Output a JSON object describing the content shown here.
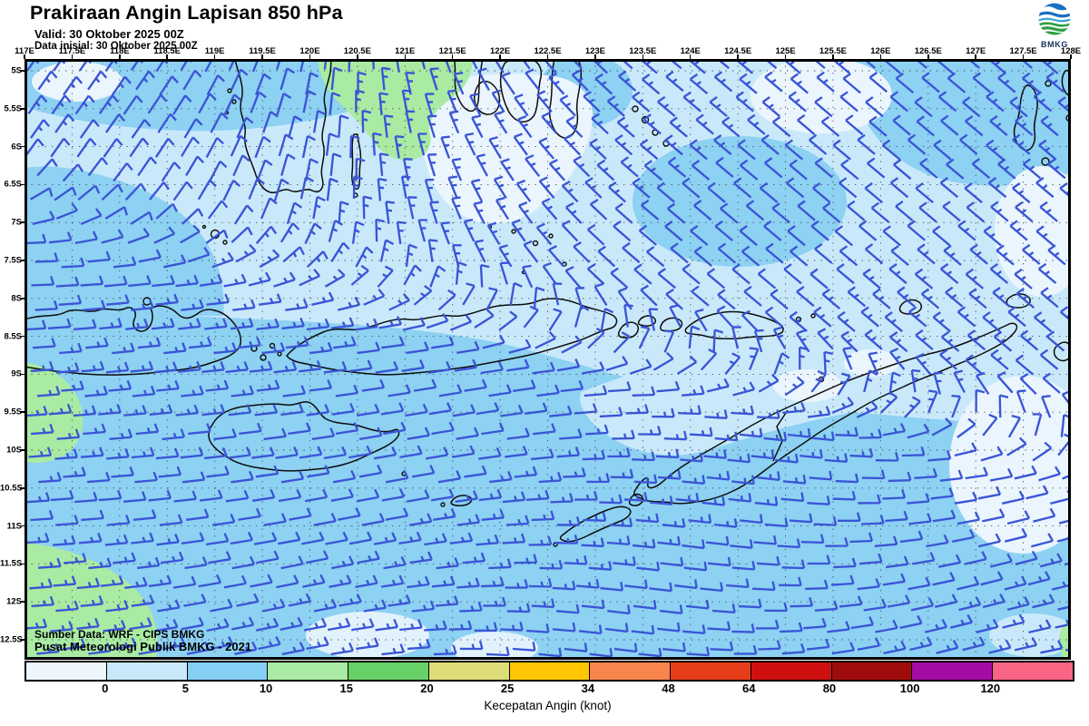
{
  "header": {
    "title": "Prakiraan Angin Lapisan 850 hPa",
    "valid_label": "Valid: 30 Oktober 2025 00Z",
    "init_label": "Data inisial: 30 Oktober 2025 00Z"
  },
  "logo": {
    "label": "BMKG"
  },
  "map": {
    "lon_labels": [
      "117E",
      "117.5E",
      "118E",
      "118.5E",
      "119E",
      "119.5E",
      "120E",
      "120.5E",
      "121E",
      "121.5E",
      "122E",
      "122.5E",
      "123E",
      "123.5E",
      "124E",
      "124.5E",
      "125E",
      "125.5E",
      "126E",
      "126.5E",
      "127E",
      "127.5E",
      "128E"
    ],
    "lat_labels": [
      "5S",
      "5.5S",
      "6S",
      "6.5S",
      "7S",
      "7.5S",
      "8S",
      "8.5S",
      "9S",
      "9.5S",
      "10S",
      "10.5S",
      "11S",
      "11.5S",
      "12S",
      "12.5S"
    ],
    "credit_line1": "Sumber Data: WRF - CIPS BMKG",
    "credit_line2": "Pusat Meteorologi Publik BMKG -  2021"
  },
  "legend": {
    "title": "Kecepatan Angin (knot)",
    "tick_labels": [
      "0",
      "5",
      "10",
      "15",
      "20",
      "25",
      "34",
      "48",
      "64",
      "80",
      "100",
      "120"
    ],
    "segment_colors": [
      "#eef5fb",
      "#c9e8fa",
      "#85cef4",
      "#a9eba3",
      "#67d067",
      "#dddd78",
      "#ffc603",
      "#f9854e",
      "#e63d1b",
      "#ce1010",
      "#a00c0c",
      "#a50ba5",
      "#fb6584"
    ]
  },
  "shading_colors": {
    "calm_pale": "#eaf5fd",
    "light_blue": "#c9e9fb",
    "medium_blue": "#8dd1f3",
    "green": "#a9eba3"
  },
  "wind": {
    "barb_color": "#3b55d6",
    "grid_dx": 27.6,
    "grid_dy": 23.7,
    "shaft_length": 24.5
  }
}
